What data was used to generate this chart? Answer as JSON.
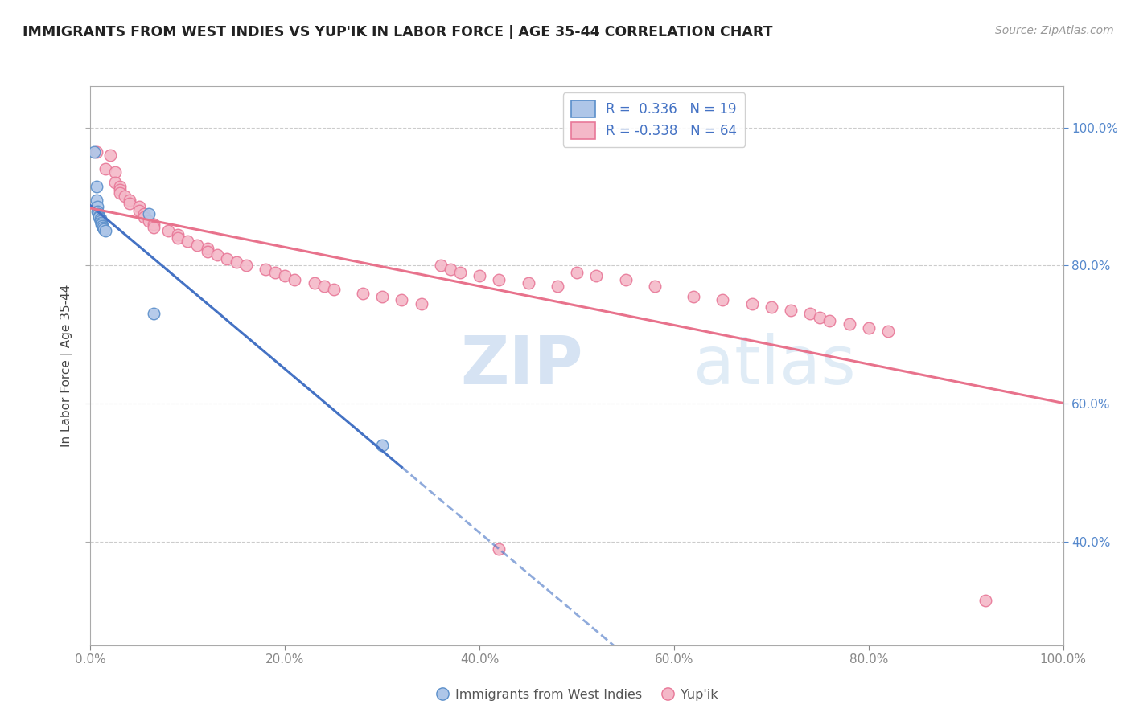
{
  "title": "IMMIGRANTS FROM WEST INDIES VS YUP'IK IN LABOR FORCE | AGE 35-44 CORRELATION CHART",
  "source": "Source: ZipAtlas.com",
  "ylabel": "In Labor Force | Age 35-44",
  "xmin": 0.0,
  "xmax": 1.0,
  "ymin": 0.25,
  "ymax": 1.06,
  "x_tick_labels": [
    "0.0%",
    "20.0%",
    "40.0%",
    "60.0%",
    "80.0%",
    "100.0%"
  ],
  "x_tick_vals": [
    0.0,
    0.2,
    0.4,
    0.6,
    0.8,
    1.0
  ],
  "y_tick_labels": [
    "40.0%",
    "60.0%",
    "80.0%",
    "100.0%"
  ],
  "y_tick_vals": [
    0.4,
    0.6,
    0.8,
    1.0
  ],
  "watermark_zip": "ZIP",
  "watermark_atlas": "atlas",
  "legend_r_blue": "0.336",
  "legend_n_blue": "19",
  "legend_r_pink": "-0.338",
  "legend_n_pink": "64",
  "blue_fill": "#aec6e8",
  "pink_fill": "#f4b8c8",
  "blue_edge": "#5b8fca",
  "pink_edge": "#e87898",
  "blue_line_color": "#4472c4",
  "pink_line_color": "#e8728c",
  "blue_scatter": [
    [
      0.004,
      0.965
    ],
    [
      0.006,
      0.915
    ],
    [
      0.006,
      0.895
    ],
    [
      0.007,
      0.885
    ],
    [
      0.007,
      0.878
    ],
    [
      0.008,
      0.875
    ],
    [
      0.009,
      0.872
    ],
    [
      0.009,
      0.87
    ],
    [
      0.01,
      0.868
    ],
    [
      0.01,
      0.865
    ],
    [
      0.011,
      0.862
    ],
    [
      0.011,
      0.86
    ],
    [
      0.012,
      0.858
    ],
    [
      0.013,
      0.855
    ],
    [
      0.014,
      0.853
    ],
    [
      0.015,
      0.85
    ],
    [
      0.06,
      0.875
    ],
    [
      0.065,
      0.73
    ],
    [
      0.3,
      0.54
    ]
  ],
  "pink_scatter": [
    [
      0.006,
      0.965
    ],
    [
      0.015,
      0.94
    ],
    [
      0.02,
      0.96
    ],
    [
      0.025,
      0.935
    ],
    [
      0.025,
      0.92
    ],
    [
      0.03,
      0.915
    ],
    [
      0.03,
      0.91
    ],
    [
      0.03,
      0.905
    ],
    [
      0.035,
      0.9
    ],
    [
      0.04,
      0.895
    ],
    [
      0.04,
      0.89
    ],
    [
      0.05,
      0.885
    ],
    [
      0.05,
      0.88
    ],
    [
      0.055,
      0.875
    ],
    [
      0.055,
      0.87
    ],
    [
      0.06,
      0.865
    ],
    [
      0.065,
      0.86
    ],
    [
      0.065,
      0.855
    ],
    [
      0.08,
      0.85
    ],
    [
      0.09,
      0.845
    ],
    [
      0.09,
      0.84
    ],
    [
      0.1,
      0.835
    ],
    [
      0.11,
      0.83
    ],
    [
      0.12,
      0.825
    ],
    [
      0.12,
      0.82
    ],
    [
      0.13,
      0.815
    ],
    [
      0.14,
      0.81
    ],
    [
      0.15,
      0.805
    ],
    [
      0.16,
      0.8
    ],
    [
      0.18,
      0.795
    ],
    [
      0.19,
      0.79
    ],
    [
      0.2,
      0.785
    ],
    [
      0.21,
      0.78
    ],
    [
      0.23,
      0.775
    ],
    [
      0.24,
      0.77
    ],
    [
      0.25,
      0.765
    ],
    [
      0.28,
      0.76
    ],
    [
      0.3,
      0.755
    ],
    [
      0.32,
      0.75
    ],
    [
      0.34,
      0.745
    ],
    [
      0.36,
      0.8
    ],
    [
      0.37,
      0.795
    ],
    [
      0.38,
      0.79
    ],
    [
      0.4,
      0.785
    ],
    [
      0.42,
      0.78
    ],
    [
      0.45,
      0.775
    ],
    [
      0.48,
      0.77
    ],
    [
      0.5,
      0.79
    ],
    [
      0.52,
      0.785
    ],
    [
      0.55,
      0.78
    ],
    [
      0.58,
      0.77
    ],
    [
      0.62,
      0.755
    ],
    [
      0.65,
      0.75
    ],
    [
      0.68,
      0.745
    ],
    [
      0.7,
      0.74
    ],
    [
      0.72,
      0.735
    ],
    [
      0.74,
      0.73
    ],
    [
      0.75,
      0.725
    ],
    [
      0.76,
      0.72
    ],
    [
      0.78,
      0.715
    ],
    [
      0.8,
      0.71
    ],
    [
      0.82,
      0.705
    ],
    [
      0.42,
      0.39
    ],
    [
      0.92,
      0.315
    ]
  ]
}
